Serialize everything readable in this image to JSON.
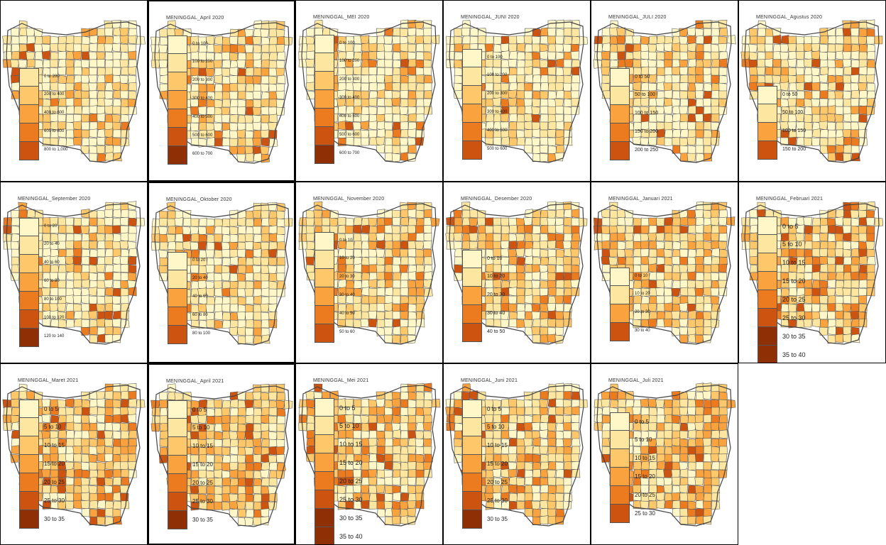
{
  "palette": [
    "#fff7c8",
    "#fde7a0",
    "#fdc76a",
    "#f9a23e",
    "#ec7a1f",
    "#cd5410",
    "#8f2f05"
  ],
  "panels": [
    {
      "title": "",
      "labels": [
        "0 to 200",
        "200 to 400",
        "400 to 600",
        "600 to 800",
        "800 to 1,000"
      ],
      "colors": [
        1,
        2,
        3,
        4,
        5
      ],
      "intensity": 0.15,
      "fs": 6
    },
    {
      "title": "MENINGGAL_April 2020",
      "labels": [
        "0 to 100",
        "100 to 200",
        "200 to 300",
        "300 to 400",
        "400 to 500",
        "500 to 600",
        "600 to 700"
      ],
      "colors": [
        0,
        1,
        2,
        3,
        4,
        5,
        6
      ],
      "intensity": 0.2,
      "fs": 6
    },
    {
      "title": "MENINGGAL_MEI 2020",
      "labels": [
        "0 to 100",
        "100 to 200",
        "200 to 300",
        "300 to 400",
        "400 to 500",
        "500 to 600",
        "600 to 700"
      ],
      "colors": [
        0,
        1,
        2,
        3,
        4,
        5,
        6
      ],
      "intensity": 0.18,
      "fs": 6
    },
    {
      "title": "MENINGGAL_JUNI 2020",
      "labels": [
        "0 to 100",
        "100 to 200",
        "200 to 300",
        "300 to 400",
        "400 to 500",
        "500 to 600"
      ],
      "colors": [
        0,
        1,
        2,
        3,
        4,
        5
      ],
      "intensity": 0.12,
      "fs": 6
    },
    {
      "title": "MENINGGAL_JULI 2020",
      "labels": [
        "0 to 50",
        "50 to 100",
        "100 to 150",
        "150 to 200",
        "200 to 250"
      ],
      "colors": [
        0,
        1,
        3,
        4,
        5
      ],
      "intensity": 0.25,
      "fs": 7
    },
    {
      "title": "MENINGGAL_Agustus 2020",
      "labels": [
        "0 to 50",
        "50 to 100",
        "100 to 150",
        "150 to 200"
      ],
      "colors": [
        0,
        1,
        3,
        5
      ],
      "intensity": 0.28,
      "fs": 7
    },
    {
      "title": "MENINGGAL_September 2020",
      "labels": [
        "0 to 20",
        "20 to 40",
        "40 to 60",
        "60 to 80",
        "80 to 100",
        "100 to 120",
        "120 to 140"
      ],
      "colors": [
        0,
        1,
        2,
        3,
        4,
        5,
        6
      ],
      "intensity": 0.2,
      "fs": 6
    },
    {
      "title": "MENINGGAL_Oktober 2020",
      "labels": [
        "0 to 20",
        "20 to 40",
        "40 to 60",
        "60 to 80",
        "80 to 100"
      ],
      "colors": [
        0,
        1,
        3,
        4,
        5
      ],
      "intensity": 0.22,
      "fs": 6
    },
    {
      "title": "MENINGGAL_November 2020",
      "labels": [
        "0 to 10",
        "10 to 20",
        "20 to 30",
        "30 to 40",
        "40 to 50",
        "50 to 60"
      ],
      "colors": [
        0,
        1,
        2,
        3,
        4,
        5
      ],
      "intensity": 0.5,
      "fs": 6
    },
    {
      "title": "MENINGGAL_Desember 2020",
      "labels": [
        "0 to 10",
        "10 to 20",
        "20 to 30",
        "30 to 40",
        "40 to 50"
      ],
      "colors": [
        0,
        1,
        3,
        4,
        5
      ],
      "intensity": 0.55,
      "fs": 7
    },
    {
      "title": "MENINGGAL_Januari 2021",
      "labels": [
        "0 to 10",
        "10 to 20",
        "20 to 30",
        "30 to 40"
      ],
      "colors": [
        0,
        1,
        3,
        5
      ],
      "intensity": 0.6,
      "fs": 6
    },
    {
      "title": "MENINGGAL_Februari 2021",
      "labels": [
        "0 to 5",
        "5 to 10",
        "10 to 15",
        "15 to 20",
        "20 to 25",
        "25 to 30",
        "30 to 35",
        "35 to 40"
      ],
      "colors": [
        0,
        1,
        2,
        3,
        4,
        5,
        6,
        6
      ],
      "intensity": 0.7,
      "fs": 9
    },
    {
      "title": "MENINGGAL_Maret 2021",
      "labels": [
        "0 to 5",
        "5 to 10",
        "10 to 15",
        "15 to 20",
        "20 to 25",
        "25 to 30",
        "30 to 35"
      ],
      "colors": [
        0,
        1,
        2,
        3,
        4,
        5,
        6
      ],
      "intensity": 0.75,
      "fs": 8
    },
    {
      "title": "MENINGGAL_April 2021",
      "labels": [
        "0 to 5",
        "5 to 10",
        "10 to 15",
        "15 to 20",
        "20 to 25",
        "25 to 30",
        "30 to 35"
      ],
      "colors": [
        0,
        1,
        2,
        3,
        4,
        5,
        6
      ],
      "intensity": 0.75,
      "fs": 8
    },
    {
      "title": "MENINGGAL_Mei 2021",
      "labels": [
        "0 to 5",
        "5 to 10",
        "10 to 15",
        "15 to 20",
        "20 to 25",
        "25 to 30",
        "30 to 35",
        "35 to 40"
      ],
      "colors": [
        0,
        1,
        2,
        3,
        4,
        5,
        6,
        6
      ],
      "intensity": 0.72,
      "fs": 9
    },
    {
      "title": "MENINGGAL_Juni 2021",
      "labels": [
        "0 to 5",
        "5 to 10",
        "10 to 15",
        "15 to 20",
        "20 to 25",
        "25 to 30",
        "30 to 35"
      ],
      "colors": [
        0,
        1,
        2,
        3,
        4,
        5,
        6
      ],
      "intensity": 0.7,
      "fs": 8
    },
    {
      "title": "MENINGGAL_Juli 2021",
      "labels": [
        "0 to 5",
        "5 to 10",
        "10 to 15",
        "15 to 20",
        "20 to 25",
        "25 to 30"
      ],
      "colors": [
        0,
        1,
        2,
        3,
        4,
        5
      ],
      "intensity": 0.78,
      "fs": 8
    }
  ]
}
